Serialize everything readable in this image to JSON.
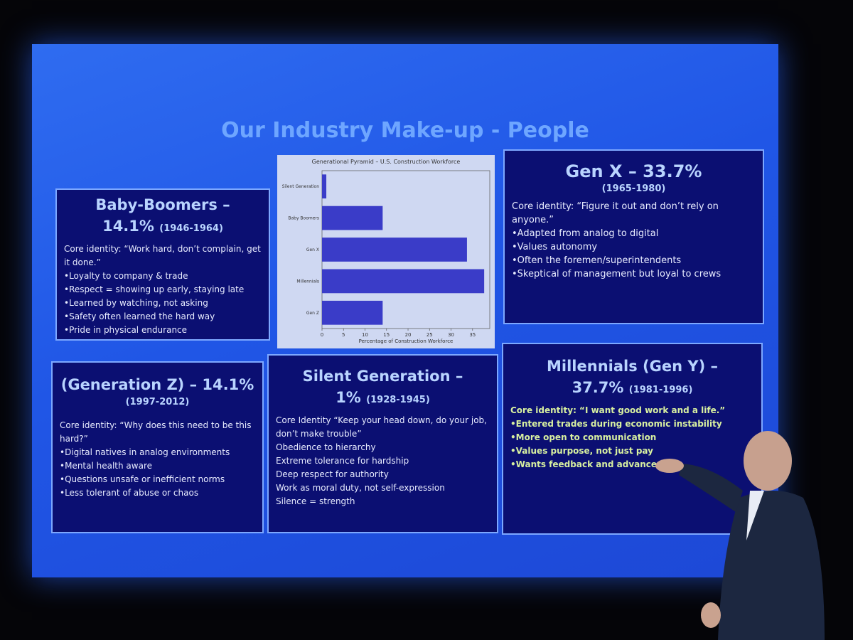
{
  "slide": {
    "title": "Our Industry Make-up - People"
  },
  "boxes": {
    "boomers": {
      "title_lines": [
        "Baby-Boomers –",
        "14.1%"
      ],
      "years": "(1946-1964)",
      "core": "Core identity: “Work hard, don’t complain, get it done.”",
      "bullets": [
        "•Loyalty to company & trade",
        "•Respect = showing up early, staying late",
        "•Learned by watching, not asking",
        "•Safety often learned the hard way",
        "•Pride in physical endurance"
      ]
    },
    "genx": {
      "title_lines": [
        "Gen X – 33.7%"
      ],
      "years": "(1965-1980)",
      "core": "Core identity: “Figure it out and don’t rely on anyone.”",
      "bullets": [
        "•Adapted from analog to digital",
        "•Values autonomy",
        "•Often the foremen/superintendents",
        "•Skeptical of management but loyal to crews"
      ]
    },
    "genz": {
      "title_lines": [
        "(Generation Z) – 14.1%"
      ],
      "years": "(1997-2012)",
      "core": "Core identity: “Why does this need to be this hard?”",
      "bullets": [
        "•Digital natives in analog environments",
        "•Mental health aware",
        "•Questions unsafe or inefficient norms",
        "•Less tolerant of abuse or chaos"
      ]
    },
    "silent": {
      "title_lines": [
        "Silent Generation –",
        "1%"
      ],
      "years": "(1928-1945)",
      "core": "Core Identity “Keep your head down, do your job, don’t make trouble”",
      "bullets": [
        "Obedience to hierarchy",
        "Extreme tolerance for hardship",
        "Deep respect for authority",
        "Work as moral duty, not self-expression",
        "Silence = strength"
      ]
    },
    "millennials": {
      "title_lines": [
        "Millennials (Gen Y) –",
        "37.7%"
      ],
      "years": "(1981-1996)",
      "core": "Core identity: “I want good work and a life.”",
      "bullets": [
        "•Entered trades during economic instability",
        "•More open to communication",
        "•Values purpose, not just pay",
        "•Wants feedback and advancement"
      ]
    }
  },
  "chart_data": {
    "type": "barh",
    "title": "Generational Pyramid – U.S. Construction Workforce",
    "categories": [
      "Silent Generation",
      "Baby Boomers",
      "Gen X",
      "Millennials",
      "Gen Z"
    ],
    "values": [
      1,
      14.1,
      33.7,
      37.7,
      14.1
    ],
    "color": "#3a3cc8",
    "xlim": [
      0,
      39
    ],
    "xticks": [
      0,
      5,
      10,
      15,
      20,
      25,
      30,
      35
    ],
    "x_label": "Percentage of Construction Workforce"
  }
}
